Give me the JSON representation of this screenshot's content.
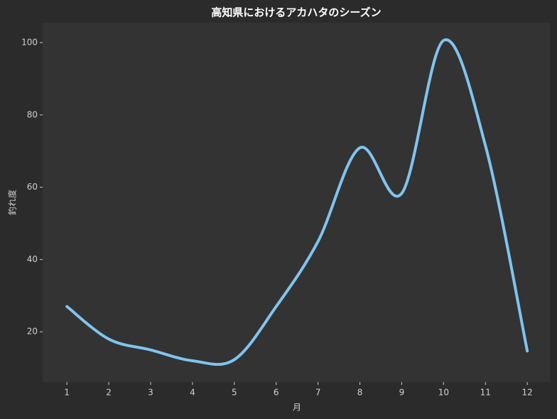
{
  "chart_data": {
    "type": "line",
    "title": "高知県におけるアカハタのシーズン",
    "x_label": "月",
    "y_label": "釣れ度",
    "x": [
      1,
      2,
      3,
      4,
      5,
      6,
      7,
      8,
      9,
      10,
      11,
      12
    ],
    "series": [
      {
        "color": "#7fc4f0",
        "values": [
          27,
          18,
          15,
          12,
          12.3,
          27,
          45,
          70.9,
          58.3,
          100.6,
          71.5,
          14.7
        ]
      }
    ],
    "xlim": [
      0.42,
      12.54
    ],
    "xticks": [
      1,
      2,
      3,
      4,
      5,
      6,
      7,
      8,
      9,
      10,
      11,
      12
    ],
    "ylim": [
      6.1,
      105.5
    ],
    "yticks": [
      20,
      40,
      60,
      80,
      100
    ],
    "smooth": true
  }
}
